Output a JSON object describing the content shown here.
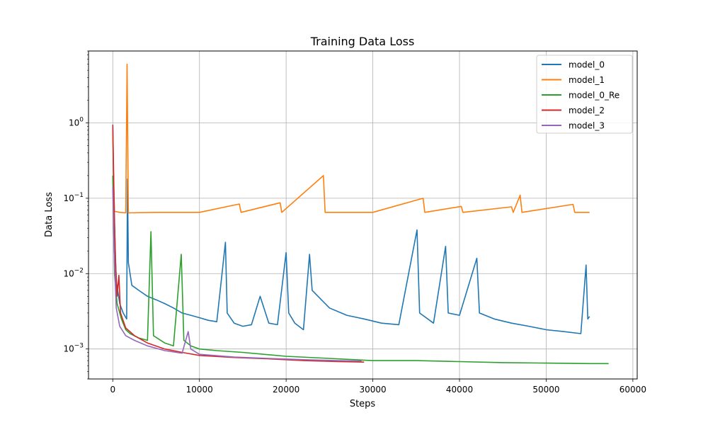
{
  "chart_data": {
    "type": "line",
    "title": "Training Data Loss",
    "xlabel": "Steps",
    "ylabel": "Data Loss",
    "xlim": [
      -2800,
      60500
    ],
    "ylim": [
      0.0004,
      9
    ],
    "yscale": "log",
    "grid": true,
    "legend": "top-right",
    "x_ticks": [
      0,
      10000,
      20000,
      30000,
      40000,
      50000,
      60000
    ],
    "y_ticks": [
      0.001,
      0.01,
      0.1,
      1
    ],
    "y_tick_labels": [
      {
        "base": "10",
        "exp": "−3"
      },
      {
        "base": "10",
        "exp": "−2"
      },
      {
        "base": "10",
        "exp": "−1"
      },
      {
        "base": "10",
        "exp": "0"
      }
    ],
    "series": [
      {
        "name": "model_0",
        "color": "#1f77b4",
        "points": [
          [
            0,
            0.95
          ],
          [
            150,
            0.065
          ],
          [
            400,
            0.008
          ],
          [
            800,
            0.004
          ],
          [
            1200,
            0.003
          ],
          [
            1600,
            0.0025
          ],
          [
            1700,
            0.18
          ],
          [
            1800,
            0.014
          ],
          [
            2200,
            0.007
          ],
          [
            3000,
            0.006
          ],
          [
            4000,
            0.005
          ],
          [
            5000,
            0.0045
          ],
          [
            6000,
            0.004
          ],
          [
            7000,
            0.0035
          ],
          [
            8000,
            0.003
          ],
          [
            9000,
            0.0028
          ],
          [
            10000,
            0.0026
          ],
          [
            11000,
            0.0024
          ],
          [
            12000,
            0.0023
          ],
          [
            13000,
            0.026
          ],
          [
            13200,
            0.003
          ],
          [
            14000,
            0.0022
          ],
          [
            15000,
            0.002
          ],
          [
            16000,
            0.0021
          ],
          [
            17000,
            0.005
          ],
          [
            18000,
            0.0022
          ],
          [
            19000,
            0.0021
          ],
          [
            20000,
            0.019
          ],
          [
            20300,
            0.003
          ],
          [
            21000,
            0.0022
          ],
          [
            22000,
            0.0018
          ],
          [
            22700,
            0.018
          ],
          [
            23000,
            0.006
          ],
          [
            25000,
            0.0035
          ],
          [
            27000,
            0.0028
          ],
          [
            29000,
            0.0025
          ],
          [
            31000,
            0.0022
          ],
          [
            33000,
            0.0021
          ],
          [
            35100,
            0.038
          ],
          [
            35400,
            0.003
          ],
          [
            37000,
            0.0022
          ],
          [
            38400,
            0.023
          ],
          [
            38700,
            0.003
          ],
          [
            40000,
            0.0028
          ],
          [
            42000,
            0.016
          ],
          [
            42300,
            0.003
          ],
          [
            44000,
            0.0025
          ],
          [
            46000,
            0.0022
          ],
          [
            48000,
            0.002
          ],
          [
            50000,
            0.0018
          ],
          [
            52000,
            0.0017
          ],
          [
            54000,
            0.0016
          ],
          [
            54600,
            0.013
          ],
          [
            54800,
            0.0025
          ],
          [
            55000,
            0.0027
          ]
        ]
      },
      {
        "name": "model_1",
        "color": "#ff7f0e",
        "points": [
          [
            0,
            0.7
          ],
          [
            80,
            0.2
          ],
          [
            200,
            0.067
          ],
          [
            800,
            0.065
          ],
          [
            1500,
            0.064
          ],
          [
            1650,
            6.0
          ],
          [
            1800,
            0.064
          ],
          [
            5000,
            0.065
          ],
          [
            10000,
            0.065
          ],
          [
            14600,
            0.084
          ],
          [
            14800,
            0.065
          ],
          [
            19300,
            0.087
          ],
          [
            19500,
            0.065
          ],
          [
            24300,
            0.2
          ],
          [
            24500,
            0.065
          ],
          [
            30000,
            0.065
          ],
          [
            35800,
            0.1
          ],
          [
            36000,
            0.065
          ],
          [
            40200,
            0.078
          ],
          [
            40400,
            0.065
          ],
          [
            46000,
            0.077
          ],
          [
            46200,
            0.065
          ],
          [
            47000,
            0.11
          ],
          [
            47200,
            0.065
          ],
          [
            53100,
            0.083
          ],
          [
            53300,
            0.065
          ],
          [
            55000,
            0.065
          ]
        ]
      },
      {
        "name": "model_0_Re",
        "color": "#2ca02c",
        "points": [
          [
            0,
            0.2
          ],
          [
            200,
            0.01
          ],
          [
            500,
            0.004
          ],
          [
            1000,
            0.0025
          ],
          [
            1500,
            0.0018
          ],
          [
            2000,
            0.0016
          ],
          [
            3000,
            0.0014
          ],
          [
            4000,
            0.0013
          ],
          [
            4400,
            0.036
          ],
          [
            4700,
            0.0015
          ],
          [
            6000,
            0.0012
          ],
          [
            7000,
            0.0011
          ],
          [
            7900,
            0.018
          ],
          [
            8200,
            0.0013
          ],
          [
            9000,
            0.0011
          ],
          [
            10000,
            0.001
          ],
          [
            12000,
            0.00095
          ],
          [
            15000,
            0.0009
          ],
          [
            20000,
            0.0008
          ],
          [
            25000,
            0.00075
          ],
          [
            30000,
            0.0007
          ],
          [
            35000,
            0.0007
          ],
          [
            40000,
            0.00068
          ],
          [
            45000,
            0.00066
          ],
          [
            50000,
            0.00065
          ],
          [
            55000,
            0.00064
          ],
          [
            57200,
            0.00064
          ]
        ]
      },
      {
        "name": "model_2",
        "color": "#d62728",
        "points": [
          [
            0,
            0.93
          ],
          [
            150,
            0.1
          ],
          [
            300,
            0.015
          ],
          [
            500,
            0.005
          ],
          [
            700,
            0.0095
          ],
          [
            900,
            0.003
          ],
          [
            1500,
            0.0019
          ],
          [
            2500,
            0.0015
          ],
          [
            4000,
            0.0012
          ],
          [
            6000,
            0.001
          ],
          [
            8000,
            0.0009
          ],
          [
            10000,
            0.00082
          ],
          [
            14000,
            0.00077
          ],
          [
            18000,
            0.00074
          ],
          [
            22000,
            0.0007
          ],
          [
            26000,
            0.00068
          ],
          [
            29000,
            0.00067
          ]
        ]
      },
      {
        "name": "model_3",
        "color": "#9467bd",
        "points": [
          [
            0,
            0.14
          ],
          [
            150,
            0.02
          ],
          [
            400,
            0.0035
          ],
          [
            800,
            0.002
          ],
          [
            1500,
            0.0015
          ],
          [
            2500,
            0.0013
          ],
          [
            4000,
            0.0011
          ],
          [
            6000,
            0.00095
          ],
          [
            8000,
            0.00088
          ],
          [
            8700,
            0.0017
          ],
          [
            9000,
            0.001
          ],
          [
            10000,
            0.00085
          ],
          [
            14000,
            0.00078
          ],
          [
            18000,
            0.00075
          ],
          [
            22000,
            0.00072
          ],
          [
            26000,
            0.0007
          ],
          [
            28700,
            0.00069
          ]
        ]
      }
    ]
  }
}
